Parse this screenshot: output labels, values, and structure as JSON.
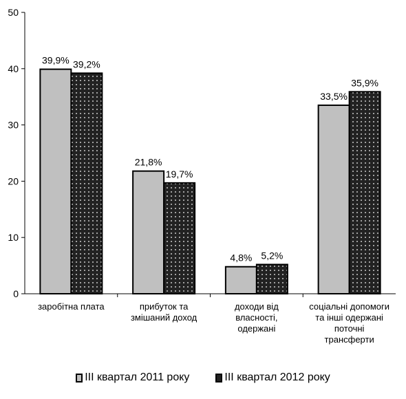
{
  "chart_data": {
    "type": "bar",
    "ylim": [
      0,
      50
    ],
    "yticks": [
      0,
      10,
      20,
      30,
      40,
      50
    ],
    "ytick_labels": [
      "0",
      "10",
      "20",
      "30",
      "40",
      "50"
    ],
    "categories": [
      [
        "заробітна плата"
      ],
      [
        "прибуток та",
        "змішаний доход"
      ],
      [
        "доходи від",
        "власності,",
        "одержані"
      ],
      [
        "соціальні допомоги",
        "та інші одержані",
        "поточні",
        "трансферти"
      ]
    ],
    "series": [
      {
        "name": "ІІІ квартал 2011 року",
        "values": [
          39.9,
          21.8,
          4.8,
          33.5
        ],
        "labels": [
          "39,9%",
          "21,8%",
          "4,8%",
          "33,5%"
        ],
        "fill": "#c0c0c0",
        "pattern": "solid"
      },
      {
        "name": "ІІІ квартал 2012 року",
        "values": [
          39.2,
          19.7,
          5.2,
          35.9
        ],
        "labels": [
          "39,2%",
          "19,7%",
          "5,2%",
          "35,9%"
        ],
        "fill": "#222222",
        "pattern": "dotted"
      }
    ],
    "grid": false,
    "legend_position": "bottom"
  }
}
